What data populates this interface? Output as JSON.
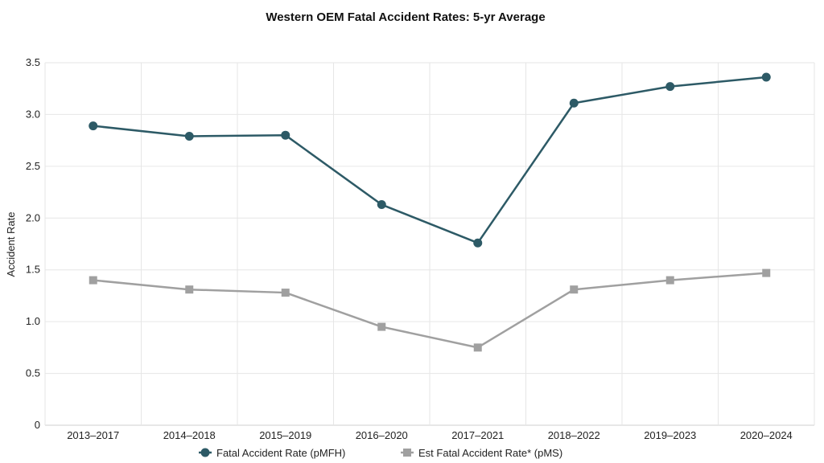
{
  "chart_data": {
    "type": "line",
    "title": "Western OEM Fatal Accident Rates: 5-yr Average",
    "xlabel": "",
    "ylabel": "Accident Rate",
    "categories": [
      "2013–2017",
      "2014–2018",
      "2015–2019",
      "2016–2020",
      "2017–2021",
      "2018–2022",
      "2019–2023",
      "2020–2024"
    ],
    "ylim": [
      0,
      3.5
    ],
    "yticks": [
      "0",
      "0.5",
      "1.0",
      "1.5",
      "2.0",
      "2.5",
      "3.0",
      "3.5"
    ],
    "grid": true,
    "legend_position": "bottom",
    "series": [
      {
        "name": "Fatal Accident Rate (pMFH)",
        "values": [
          2.89,
          2.79,
          2.8,
          2.13,
          1.76,
          3.11,
          3.27,
          3.36
        ],
        "color": "#2d5a66",
        "marker": "circle"
      },
      {
        "name": "Est Fatal Accident Rate* (pMS)",
        "values": [
          1.4,
          1.31,
          1.28,
          0.95,
          0.75,
          1.31,
          1.4,
          1.47
        ],
        "color": "#a0a0a0",
        "marker": "square"
      }
    ]
  }
}
